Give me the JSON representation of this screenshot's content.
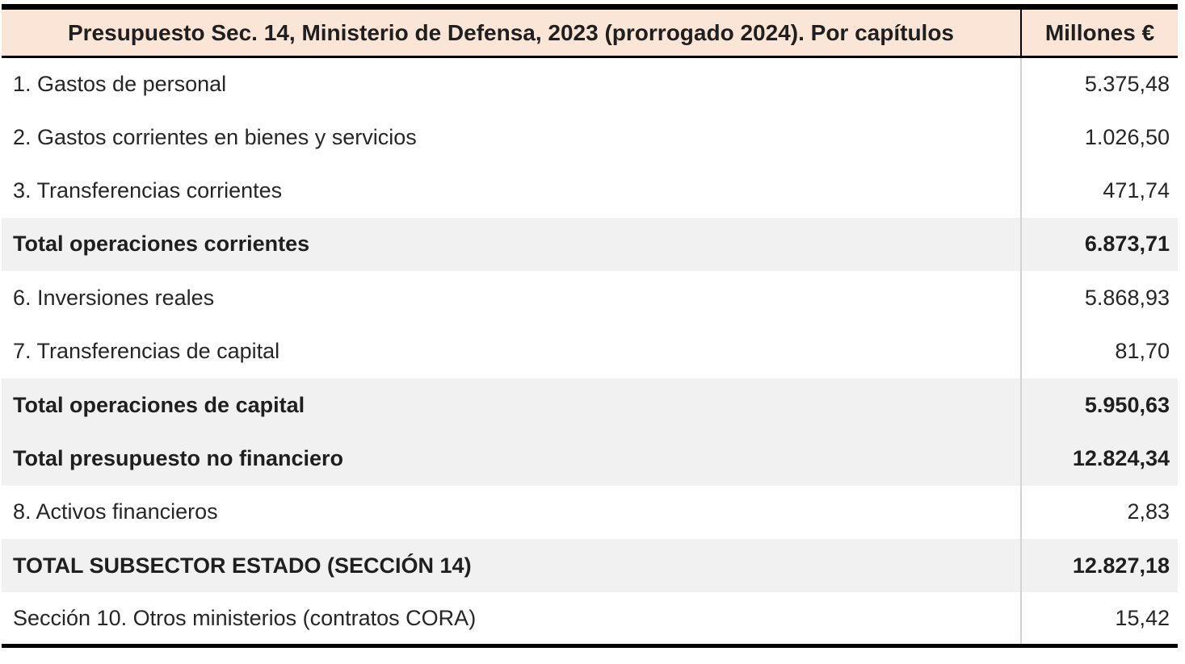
{
  "table": {
    "header": {
      "title": "Presupuesto Sec. 14, Ministerio de Defensa, 2023 (prorrogado 2024). Por capítulos",
      "value_label": "Millones €"
    },
    "rows": [
      {
        "label": "1. Gastos de personal",
        "value": "5.375,48",
        "emphasis": false
      },
      {
        "label": "2. Gastos corrientes en bienes y servicios",
        "value": "1.026,50",
        "emphasis": false
      },
      {
        "label": "3. Transferencias corrientes",
        "value": "471,74",
        "emphasis": false
      },
      {
        "label": "Total operaciones corrientes",
        "value": "6.873,71",
        "emphasis": true
      },
      {
        "label": "6. Inversiones reales",
        "value": "5.868,93",
        "emphasis": false
      },
      {
        "label": "7. Transferencias de capital",
        "value": "81,70",
        "emphasis": false
      },
      {
        "label": "Total operaciones de capital",
        "value": "5.950,63",
        "emphasis": true
      },
      {
        "label": "Total presupuesto no financiero",
        "value": "12.824,34",
        "emphasis": true
      },
      {
        "label": "8. Activos financieros",
        "value": "2,83",
        "emphasis": false
      },
      {
        "label": "TOTAL SUBSECTOR ESTADO (SECCIÓN 14)",
        "value": "12.827,18",
        "emphasis": true
      },
      {
        "label": "Sección 10. Otros ministerios (contratos CORA)",
        "value": "15,42",
        "emphasis": false
      }
    ],
    "colors": {
      "header_bg": "#fbe5d6",
      "total_row_bg": "#f1f1f1",
      "border": "#000000",
      "divider": "#d3d3d3",
      "text": "#262626"
    }
  }
}
